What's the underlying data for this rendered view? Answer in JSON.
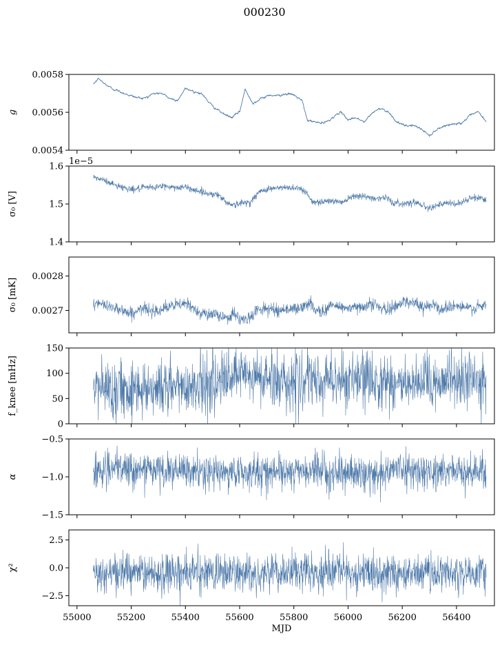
{
  "figure": {
    "title": "000230"
  },
  "colors": {
    "series": "#4c78a8",
    "axes": "#000000"
  },
  "chart_data": [
    {
      "type": "line",
      "ylabel": "g",
      "ylim": [
        0.0054,
        0.0058
      ],
      "yticks": [
        0.0054,
        0.0056,
        0.0058
      ],
      "ytick_labels": [
        "0.0054",
        "0.0056",
        "0.0058"
      ],
      "xlim": [
        54970,
        56540
      ],
      "xticks": [
        55000,
        55200,
        55400,
        55600,
        55800,
        56000,
        56200,
        56400
      ],
      "xtick_labels": [],
      "offset_text": "",
      "series": [
        {
          "noise": 4e-06,
          "x": [
            55060,
            55080,
            55100,
            55130,
            55160,
            55190,
            55220,
            55250,
            55280,
            55310,
            55340,
            55370,
            55400,
            55430,
            55460,
            55500,
            55540,
            55570,
            55600,
            55620,
            55650,
            55680,
            55710,
            55740,
            55770,
            55800,
            55830,
            55850,
            55880,
            55910,
            55940,
            55970,
            56000,
            56030,
            56060,
            56090,
            56120,
            56150,
            56180,
            56210,
            56240,
            56270,
            56300,
            56330,
            56360,
            56390,
            56420,
            56450,
            56480,
            56510
          ],
          "y": [
            0.005748,
            0.005778,
            0.005752,
            0.005725,
            0.005708,
            0.005692,
            0.005678,
            0.005675,
            0.005698,
            0.005702,
            0.005675,
            0.005662,
            0.005725,
            0.005712,
            0.005698,
            0.005632,
            0.005592,
            0.005572,
            0.005602,
            0.00572,
            0.005648,
            0.005672,
            0.005692,
            0.005688,
            0.005698,
            0.005692,
            0.005662,
            0.005558,
            0.005548,
            0.005542,
            0.005568,
            0.005602,
            0.005562,
            0.005572,
            0.005548,
            0.005598,
            0.005622,
            0.005602,
            0.005548,
            0.005528,
            0.005532,
            0.005512,
            0.005478,
            0.005512,
            0.005532,
            0.005538,
            0.005545,
            0.005582,
            0.005602,
            0.005552
          ]
        }
      ]
    },
    {
      "type": "line",
      "ylabel": "σ₀ [V]",
      "ylim": [
        1.4e-05,
        1.6e-05
      ],
      "yticks": [
        1.4e-05,
        1.5e-05,
        1.6e-05
      ],
      "ytick_labels": [
        "1.4",
        "1.5",
        "1.6"
      ],
      "xlim": [
        54970,
        56540
      ],
      "xticks": [
        55000,
        55200,
        55400,
        55600,
        55800,
        56000,
        56200,
        56400
      ],
      "xtick_labels": [],
      "offset_text": "1e−5",
      "series": [
        {
          "noise": 4.5e-08,
          "x": [
            55060,
            55090,
            55120,
            55150,
            55180,
            55210,
            55240,
            55280,
            55320,
            55360,
            55400,
            55440,
            55480,
            55520,
            55550,
            55580,
            55610,
            55640,
            55670,
            55700,
            55740,
            55780,
            55820,
            55850,
            55870,
            55900,
            55940,
            55980,
            56000,
            56030,
            56060,
            56100,
            56140,
            56170,
            56200,
            56230,
            56260,
            56290,
            56310,
            56340,
            56370,
            56400,
            56430,
            56460,
            56490,
            56510
          ],
          "y": [
            1.57e-05,
            1.565e-05,
            1.556e-05,
            1.548e-05,
            1.542e-05,
            1.538e-05,
            1.542e-05,
            1.544e-05,
            1.547e-05,
            1.544e-05,
            1.544e-05,
            1.536e-05,
            1.528e-05,
            1.525e-05,
            1.505e-05,
            1.497e-05,
            1.503e-05,
            1.505e-05,
            1.53e-05,
            1.54e-05,
            1.542e-05,
            1.543e-05,
            1.543e-05,
            1.528e-05,
            1.502e-05,
            1.507e-05,
            1.508e-05,
            1.505e-05,
            1.516e-05,
            1.524e-05,
            1.519e-05,
            1.515e-05,
            1.517e-05,
            1.502e-05,
            1.5e-05,
            1.505e-05,
            1.503e-05,
            1.49e-05,
            1.494e-05,
            1.498e-05,
            1.502e-05,
            1.499e-05,
            1.508e-05,
            1.516e-05,
            1.517e-05,
            1.51e-05
          ]
        }
      ]
    },
    {
      "type": "line",
      "ylabel": "σ₀ [mK]",
      "ylim": [
        0.002635,
        0.002855
      ],
      "yticks": [
        0.0027,
        0.0028
      ],
      "ytick_labels": [
        "0.0027",
        "0.0028"
      ],
      "xlim": [
        54970,
        56540
      ],
      "xticks": [
        55000,
        55200,
        55400,
        55600,
        55800,
        56000,
        56200,
        56400
      ],
      "xtick_labels": [],
      "offset_text": "",
      "series": [
        {
          "noise": 9e-06,
          "x": [
            55060,
            55100,
            55140,
            55170,
            55200,
            55240,
            55280,
            55320,
            55360,
            55400,
            55440,
            55480,
            55520,
            55560,
            55580,
            55610,
            55640,
            55670,
            55700,
            55740,
            55780,
            55820,
            55860,
            55880,
            55900,
            55940,
            55980,
            56020,
            56060,
            56100,
            56130,
            56160,
            56200,
            56240,
            56280,
            56310,
            56340,
            56380,
            56420,
            56460,
            56490,
            56510
          ],
          "y": [
            0.00272,
            0.002715,
            0.00271,
            0.0027,
            0.00269,
            0.002705,
            0.0027,
            0.002705,
            0.002715,
            0.00272,
            0.0027,
            0.00269,
            0.002685,
            0.00268,
            0.00269,
            0.00267,
            0.00268,
            0.002705,
            0.002705,
            0.0027,
            0.002705,
            0.002705,
            0.00272,
            0.002705,
            0.002695,
            0.002715,
            0.00271,
            0.002705,
            0.002715,
            0.00272,
            0.0027,
            0.002705,
            0.002725,
            0.002725,
            0.002705,
            0.002725,
            0.0027,
            0.002715,
            0.00271,
            0.002705,
            0.00271,
            0.002715
          ]
        }
      ]
    },
    {
      "type": "line",
      "ylabel": "f_knee [mHz]",
      "ylim": [
        0,
        150
      ],
      "yticks": [
        0,
        50,
        100,
        150
      ],
      "ytick_labels": [
        "0",
        "50",
        "100",
        "150"
      ],
      "xlim": [
        54970,
        56540
      ],
      "xticks": [
        55000,
        55200,
        55400,
        55600,
        55800,
        56000,
        56200,
        56400
      ],
      "xtick_labels": [],
      "offset_text": "",
      "series": [
        {
          "noise": 28,
          "x": [
            55060,
            55150,
            55250,
            55350,
            55420,
            55500,
            55560,
            55610,
            55650,
            55700,
            55800,
            55880,
            55900,
            55920,
            55960,
            56050,
            56150,
            56220,
            56260,
            56280,
            56300,
            56330,
            56400,
            56510
          ],
          "y": [
            72,
            70,
            72,
            72,
            76,
            82,
            86,
            96,
            92,
            88,
            84,
            82,
            76,
            92,
            88,
            86,
            86,
            74,
            66,
            92,
            70,
            88,
            88,
            80
          ]
        }
      ]
    },
    {
      "type": "line",
      "ylabel": "α",
      "ylim": [
        -1.5,
        -0.5
      ],
      "yticks": [
        -1.5,
        -1.0,
        -0.5
      ],
      "ytick_labels": [
        "−1.5",
        "−1.0",
        "−0.5"
      ],
      "xlim": [
        54970,
        56540
      ],
      "xticks": [
        55000,
        55200,
        55400,
        55600,
        55800,
        56000,
        56200,
        56400
      ],
      "xtick_labels": [],
      "offset_text": "",
      "series": [
        {
          "noise": 0.11,
          "x": [
            55060,
            55150,
            55250,
            55350,
            55450,
            55550,
            55650,
            55750,
            55850,
            55900,
            55950,
            56050,
            56100,
            56150,
            56220,
            56260,
            56300,
            56350,
            56450,
            56510
          ],
          "y": [
            -0.92,
            -0.9,
            -0.9,
            -0.93,
            -0.94,
            -0.95,
            -0.93,
            -0.93,
            -0.93,
            -0.92,
            -0.94,
            -0.96,
            -0.97,
            -0.92,
            -0.88,
            -0.92,
            -0.94,
            -0.92,
            -0.93,
            -0.92
          ]
        }
      ]
    },
    {
      "type": "line",
      "ylabel": "χ²",
      "ylim": [
        -3.4,
        3.4
      ],
      "yticks": [
        -2.5,
        0.0,
        2.5
      ],
      "ytick_labels": [
        "−2.5",
        "0.0",
        "2.5"
      ],
      "xlim": [
        54970,
        56540
      ],
      "xticks": [
        55000,
        55200,
        55400,
        55600,
        55800,
        56000,
        56200,
        56400
      ],
      "xtick_labels": [
        "55000",
        "55200",
        "55400",
        "55600",
        "55800",
        "56000",
        "56200",
        "56400"
      ],
      "xlabel": "MJD",
      "offset_text": "",
      "series": [
        {
          "noise": 0.85,
          "x": [
            55060,
            55200,
            55400,
            55600,
            55800,
            55900,
            56000,
            56200,
            56300,
            56400,
            56510
          ],
          "y": [
            -0.45,
            -0.45,
            -0.4,
            -0.5,
            -0.45,
            -0.45,
            -0.5,
            -0.45,
            -0.45,
            -0.5,
            -0.45
          ]
        }
      ]
    }
  ]
}
